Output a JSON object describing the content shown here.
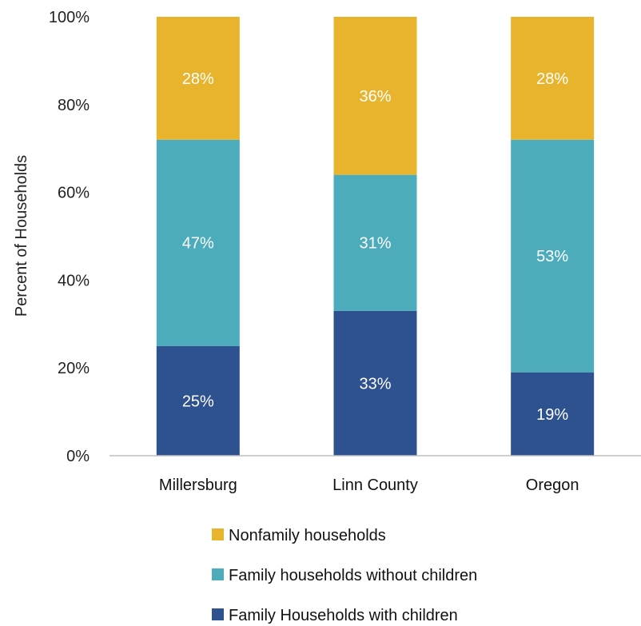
{
  "chart_data": {
    "type": "bar",
    "stacked": true,
    "categories": [
      "Millersburg",
      "Linn County",
      "Oregon"
    ],
    "series": [
      {
        "name": "Family Households with children",
        "color": "#2e5190",
        "values": [
          25,
          33,
          19
        ]
      },
      {
        "name": "Family households without children",
        "color": "#4cacbc",
        "values": [
          47,
          31,
          53
        ]
      },
      {
        "name": "Nonfamily households",
        "color": "#e8b42d",
        "values": [
          28,
          36,
          28
        ]
      }
    ],
    "ylabel": "Percent of Households",
    "ylim": [
      0,
      100
    ],
    "yticks": [
      "0%",
      "20%",
      "40%",
      "60%",
      "80%",
      "100%"
    ],
    "legend_position": "bottom",
    "legend_order": [
      "Nonfamily households",
      "Family households without children",
      "Family Households with children"
    ],
    "grid": false
  }
}
